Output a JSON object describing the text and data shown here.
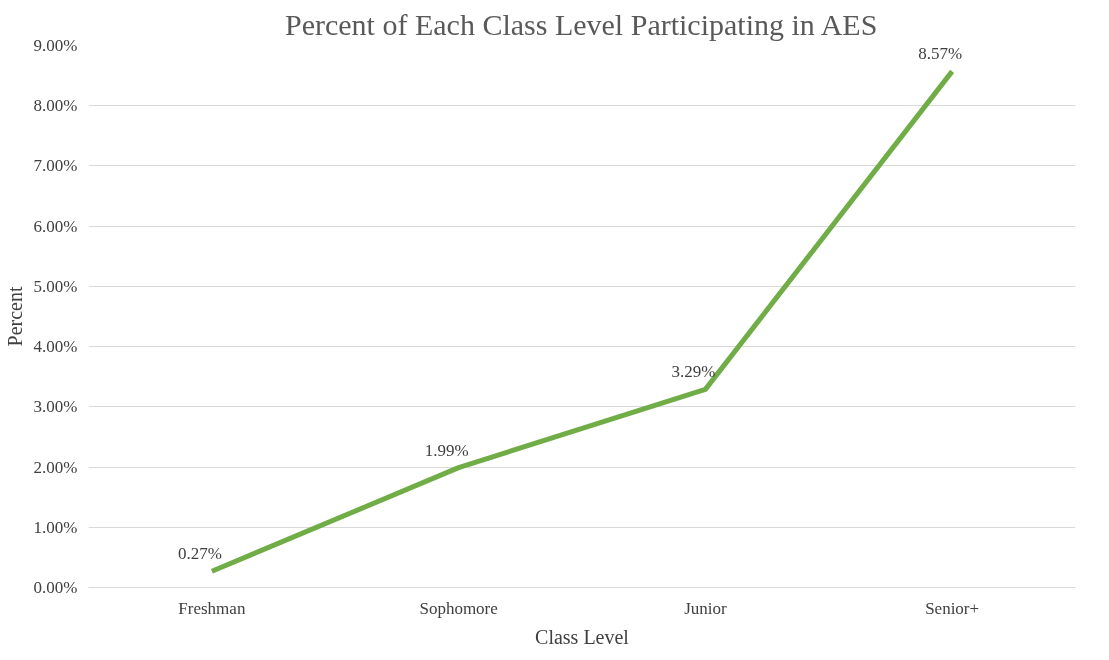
{
  "chart_data": {
    "type": "line",
    "title": "Percent of Each Class Level Participating in AES",
    "xlabel": "Class Level",
    "ylabel": "Percent",
    "categories": [
      "Freshman",
      "Sophomore",
      "Junior",
      "Senior+"
    ],
    "series": [
      {
        "color": "#70ad47",
        "values": [
          0.27,
          1.99,
          3.29,
          8.57
        ],
        "value_labels": [
          "0.27%",
          "1.99%",
          "3.29%",
          "8.57%"
        ]
      }
    ],
    "ylim": [
      0,
      9
    ],
    "yticks": [
      {
        "value": 0,
        "label": "0.00%"
      },
      {
        "value": 1,
        "label": "1.00%"
      },
      {
        "value": 2,
        "label": "2.00%"
      },
      {
        "value": 3,
        "label": "3.00%"
      },
      {
        "value": 4,
        "label": "4.00%"
      },
      {
        "value": 5,
        "label": "5.00%"
      },
      {
        "value": 6,
        "label": "6.00%"
      },
      {
        "value": 7,
        "label": "7.00%"
      },
      {
        "value": 8,
        "label": "8.00%"
      },
      {
        "value": 9,
        "label": "9.00%"
      }
    ],
    "grid": "y",
    "marker": "none",
    "line_style": "solid"
  }
}
